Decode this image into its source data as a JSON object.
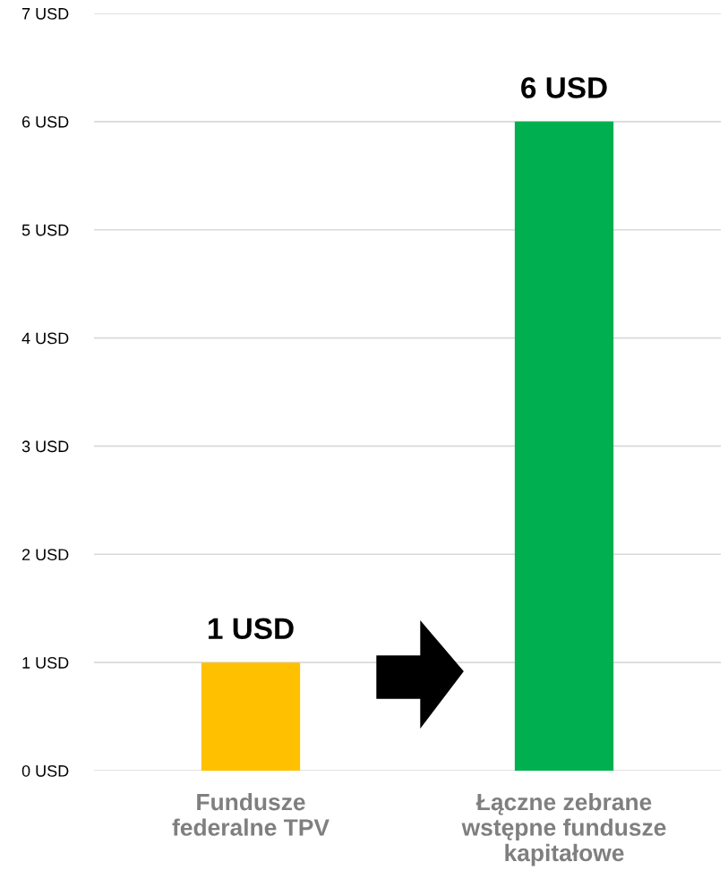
{
  "chart_data": {
    "type": "bar",
    "categories": [
      "Fundusze\nfederalne TPV",
      "Łączne zebrane\nwstępne fundusze\nkapitałowe"
    ],
    "values": [
      1,
      6
    ],
    "colors": [
      "#ffc000",
      "#00b050"
    ],
    "value_labels": [
      "1 USD",
      "6 USD"
    ],
    "ylim": [
      0,
      7
    ],
    "yticks": [
      {
        "value": 0,
        "label": "0 USD"
      },
      {
        "value": 1,
        "label": "1 USD"
      },
      {
        "value": 2,
        "label": "2 USD"
      },
      {
        "value": 3,
        "label": "3 USD"
      },
      {
        "value": 4,
        "label": "4 USD"
      },
      {
        "value": 5,
        "label": "5 USD"
      },
      {
        "value": 6,
        "label": "6 USD"
      },
      {
        "value": 7,
        "label": "7 USD"
      }
    ],
    "grid": "y"
  }
}
